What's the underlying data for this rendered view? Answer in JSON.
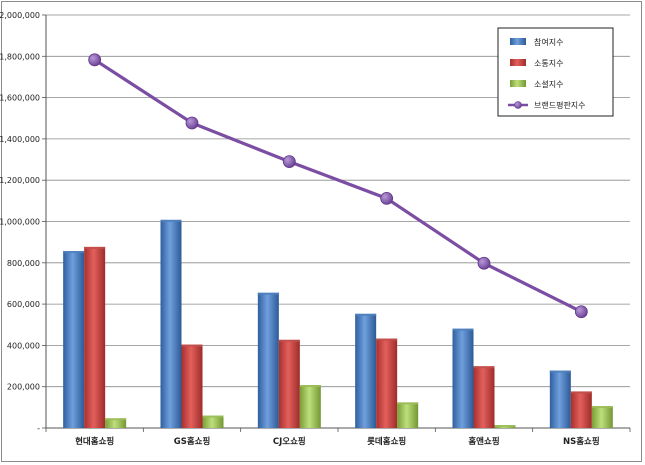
{
  "chart_data": {
    "type": "bar",
    "categories": [
      "현대홈쇼핑",
      "GS홈쇼핑",
      "CJ오쇼핑",
      "롯데홈쇼핑",
      "홈앤쇼핑",
      "NS홈쇼핑"
    ],
    "series": [
      {
        "name": "참여지수",
        "type": "bar",
        "color": "#4f81bd",
        "values": [
          857000,
          1008000,
          655000,
          553000,
          481000,
          278000
        ]
      },
      {
        "name": "소통지수",
        "type": "bar",
        "color": "#c0504d",
        "values": [
          877000,
          404000,
          427000,
          433000,
          299000,
          177000
        ]
      },
      {
        "name": "소셜지수",
        "type": "bar",
        "color": "#9bbb59",
        "values": [
          47000,
          60000,
          208000,
          124000,
          14000,
          106000
        ]
      },
      {
        "name": "브랜드평판지수",
        "type": "line",
        "color": "#7b4ea3",
        "values": [
          1783000,
          1477000,
          1290000,
          1112000,
          798000,
          563000
        ]
      }
    ],
    "y_ticks": [
      "-",
      "200,000",
      "400,000",
      "600,000",
      "800,000",
      "1,000,000",
      "1,200,000",
      "1,400,000",
      "1,600,000",
      "1,800,000",
      "2,000,000"
    ],
    "ylim": [
      0,
      2000000
    ],
    "grid": true,
    "legend_position": "top-right"
  }
}
